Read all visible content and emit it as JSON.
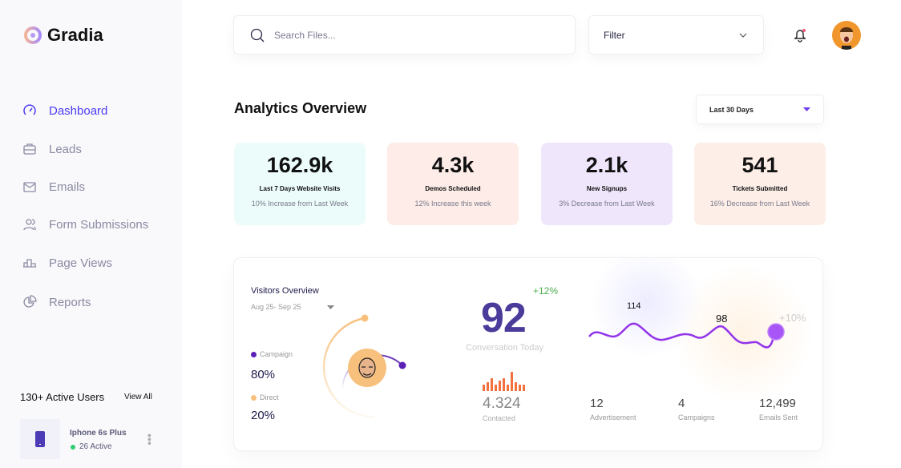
{
  "brand": {
    "name": "Gradia"
  },
  "sidebar": {
    "items": [
      {
        "label": "Dashboard",
        "icon": "gauge-icon",
        "active": true
      },
      {
        "label": "Leads",
        "icon": "briefcase-icon"
      },
      {
        "label": "Emails",
        "icon": "mail-icon"
      },
      {
        "label": "Form Submissions",
        "icon": "users-icon"
      },
      {
        "label": "Page Views",
        "icon": "bar-icon"
      },
      {
        "label": "Reports",
        "icon": "pie-icon"
      }
    ],
    "active_users": {
      "title": "130+ Active Users",
      "view_all": "View All",
      "device": {
        "name": "Iphone 6s Plus",
        "status": "26 Active",
        "status_color": "#2ecc71"
      }
    }
  },
  "header": {
    "search_placeholder": "Search Files...",
    "filter_label": "Filter"
  },
  "main": {
    "title": "Analytics Overview",
    "range": "Last 30 Days",
    "cards": [
      {
        "value": "162.9k",
        "label": "Last 7 Days Website Visits",
        "sub": "10% Increase from Last Week",
        "bg": "#ebfcfb"
      },
      {
        "value": "4.3k",
        "label": "Demos Scheduled",
        "sub": "12% Increase this week",
        "bg": "#fdece8"
      },
      {
        "value": "2.1k",
        "label": "New Signups",
        "sub": "3% Decrease from Last Week",
        "bg": "#efe6fc"
      },
      {
        "value": "541",
        "label": "Tickets Submitted",
        "sub": "16% Decrease from Last Week",
        "bg": "#fdeee8"
      }
    ]
  },
  "visitors": {
    "title": "Visitors Overview",
    "range": "Aug 25- Sep 25",
    "legend": [
      {
        "label": "Campaign",
        "value": "80%",
        "color": "#5b21b6"
      },
      {
        "label": "Direct",
        "value": "20%",
        "color": "#f8c07d"
      }
    ]
  },
  "conversation": {
    "value": "92",
    "label": "Conversation Today",
    "change": "+12%"
  },
  "contacted": {
    "value": "4.324",
    "label": "Contacted"
  },
  "trend": {
    "peak1": "114",
    "peak2": "98",
    "change": "+10%"
  },
  "stats": [
    {
      "value": "12",
      "label": "Advertisement"
    },
    {
      "value": "4",
      "label": "Campaigns"
    },
    {
      "value": "12,499",
      "label": "Emails Sent"
    }
  ]
}
